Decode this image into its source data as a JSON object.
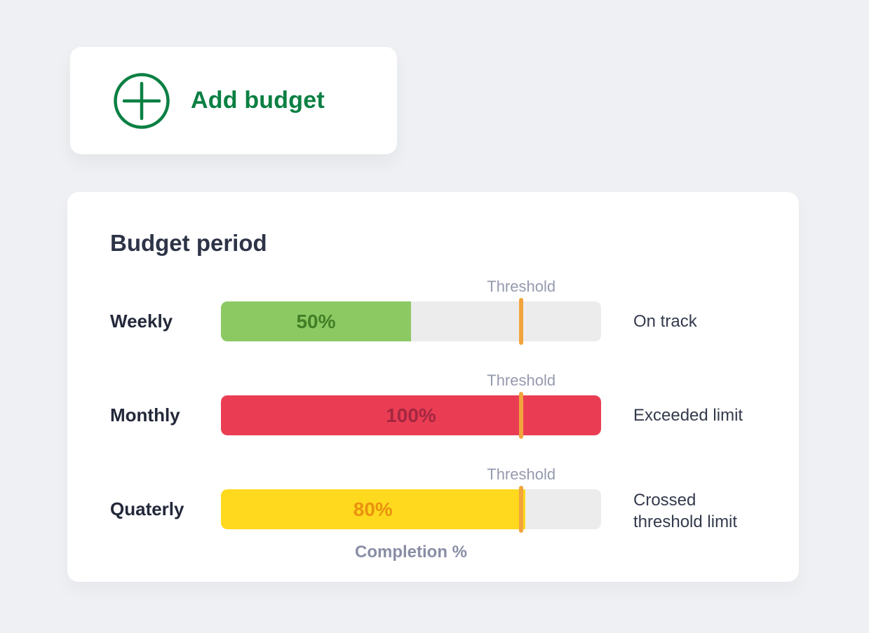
{
  "add_budget": {
    "label": "Add budget",
    "accent_color": "#0b8043"
  },
  "panel": {
    "title": "Budget period",
    "threshold_label": "Threshold",
    "threshold_percent": 79,
    "xlabel": "Completion %",
    "track_color": "#ececec",
    "marker_color": "#f2a43d"
  },
  "rows": [
    {
      "label": "Weekly",
      "percent": 50,
      "value_label": "50%",
      "status": "On track",
      "fill_color": "#8cc963",
      "value_color": "#417f27"
    },
    {
      "label": "Monthly",
      "percent": 100,
      "value_label": "100%",
      "status": "Exceeded limit",
      "fill_color": "#ea3d54",
      "value_color": "#a32740"
    },
    {
      "label": "Quaterly",
      "percent": 80,
      "value_label": "80%",
      "status": "Crossed threshold limit",
      "fill_color": "#ffd91e",
      "value_color": "#ea920f"
    }
  ],
  "chart_data": {
    "type": "bar",
    "title": "Budget period",
    "categories": [
      "Weekly",
      "Monthly",
      "Quaterly"
    ],
    "values": [
      50,
      100,
      80
    ],
    "value_labels": [
      "50%",
      "100%",
      "80%"
    ],
    "statuses": [
      "On track",
      "Exceeded limit",
      "Crossed threshold limit"
    ],
    "bar_colors": [
      "#8cc963",
      "#ea3d54",
      "#ffd91e"
    ],
    "threshold": {
      "label": "Threshold",
      "value": 79,
      "color": "#f2a43d"
    },
    "xlabel": "Completion %",
    "xlim": [
      0,
      100
    ],
    "orientation": "horizontal",
    "grid": false,
    "legend": false
  }
}
